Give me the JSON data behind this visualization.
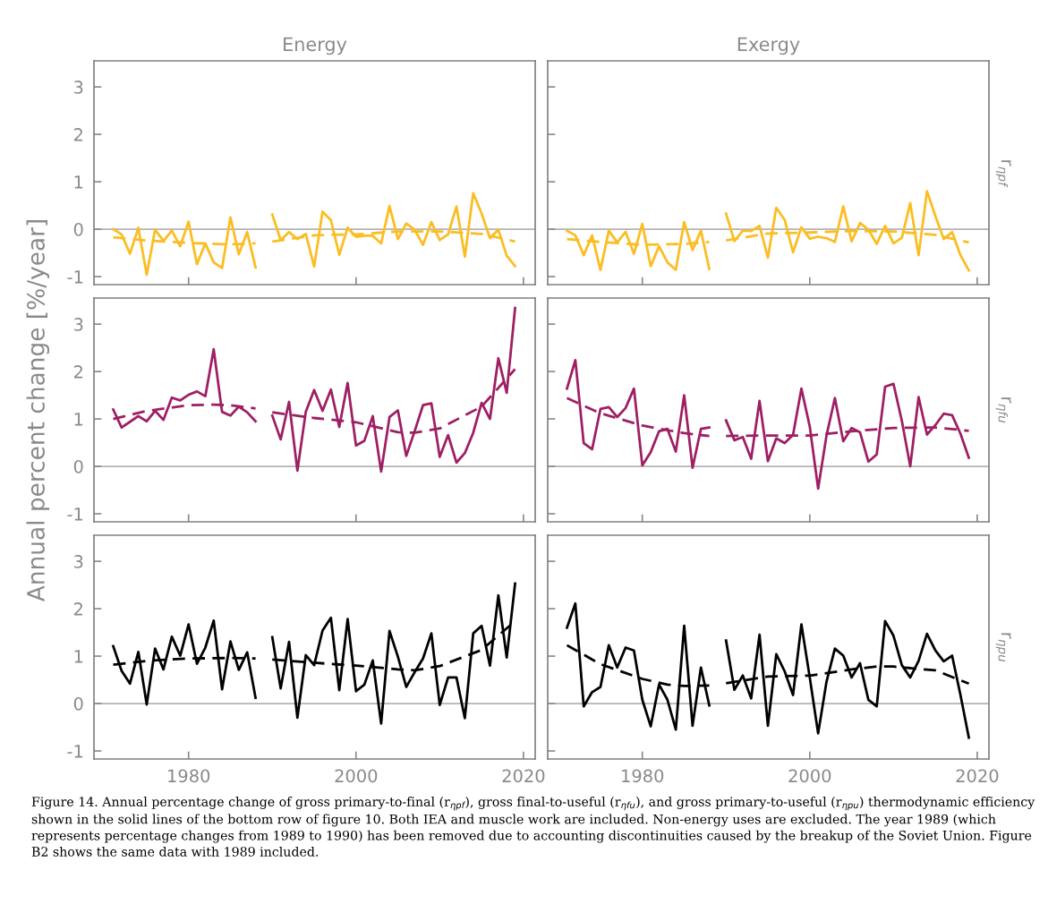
{
  "chart_data": [
    {
      "type": "line",
      "title": "Energy",
      "tick_labels": "y",
      "xlim": [
        1968.7,
        2021.4
      ],
      "ylim": [
        -1.17,
        3.55
      ],
      "xticks": [
        1980,
        2000,
        2020
      ],
      "yticks": [
        -1,
        0,
        1,
        2,
        3
      ],
      "x": [
        1971,
        1972,
        1973,
        1974,
        1975,
        1976,
        1977,
        1978,
        1979,
        1980,
        1981,
        1982,
        1983,
        1984,
        1985,
        1986,
        1987,
        1988,
        1989,
        1990,
        1991,
        1992,
        1993,
        1994,
        1995,
        1996,
        1997,
        1998,
        1999,
        2000,
        2001,
        2002,
        2003,
        2004,
        2005,
        2006,
        2007,
        2008,
        2009,
        2010,
        2011,
        2012,
        2013,
        2014,
        2015,
        2016,
        2017,
        2018,
        2019
      ],
      "ref_lines": [
        {
          "axis": "y",
          "value": 0,
          "color": "#b3b3b3"
        }
      ],
      "series": [
        {
          "color": "#fbbd22",
          "line_style": "solid",
          "values": [
            0.0,
            -0.11,
            -0.52,
            0.03,
            -0.96,
            -0.01,
            -0.25,
            -0.03,
            -0.36,
            0.16,
            -0.74,
            -0.3,
            -0.7,
            -0.82,
            0.25,
            -0.53,
            -0.06,
            -0.81,
            null,
            0.31,
            -0.23,
            -0.06,
            -0.21,
            -0.1,
            -0.79,
            0.37,
            0.19,
            -0.54,
            0.03,
            -0.16,
            -0.14,
            -0.14,
            -0.3,
            0.49,
            -0.21,
            0.12,
            -0.01,
            -0.33,
            0.15,
            -0.23,
            -0.11,
            0.48,
            -0.58,
            0.76,
            0.33,
            -0.19,
            -0.01,
            -0.56,
            -0.78
          ]
        },
        {
          "color": "#fbbd22",
          "line_style": "dashed",
          "x": [
            1971,
            1975,
            1980,
            1985,
            1988,
            1989,
            1990,
            1995,
            2000,
            2005,
            2010,
            2015,
            2019
          ],
          "values": [
            -0.17,
            -0.24,
            -0.29,
            -0.32,
            -0.3,
            null,
            -0.26,
            -0.13,
            -0.11,
            -0.05,
            -0.05,
            -0.1,
            -0.26
          ]
        }
      ]
    },
    {
      "type": "line",
      "title": "Exergy",
      "y2label": "r$_{ηpf}$",
      "tick_labels": false,
      "xlim": [
        1968.7,
        2021.4
      ],
      "ylim": [
        -1.17,
        3.55
      ],
      "xticks": [
        1980,
        2000,
        2020
      ],
      "yticks": [
        -1,
        0,
        1,
        2,
        3
      ],
      "x": [
        1971,
        1972,
        1973,
        1974,
        1975,
        1976,
        1977,
        1978,
        1979,
        1980,
        1981,
        1982,
        1983,
        1984,
        1985,
        1986,
        1987,
        1988,
        1989,
        1990,
        1991,
        1992,
        1993,
        1994,
        1995,
        1996,
        1997,
        1998,
        1999,
        2000,
        2001,
        2002,
        2003,
        2004,
        2005,
        2006,
        2007,
        2008,
        2009,
        2010,
        2011,
        2012,
        2013,
        2014,
        2015,
        2016,
        2017,
        2018,
        2019
      ],
      "ref_lines": [
        {
          "axis": "y",
          "value": 0,
          "color": "#b3b3b3"
        }
      ],
      "series": [
        {
          "color": "#fbbd22",
          "line_style": "solid",
          "values": [
            -0.03,
            -0.13,
            -0.55,
            -0.13,
            -0.86,
            -0.03,
            -0.28,
            -0.06,
            -0.52,
            0.11,
            -0.78,
            -0.36,
            -0.7,
            -0.86,
            0.15,
            -0.44,
            -0.03,
            -0.84,
            null,
            0.33,
            -0.25,
            -0.03,
            -0.04,
            0.07,
            -0.6,
            0.45,
            0.2,
            -0.49,
            0.04,
            -0.2,
            -0.16,
            -0.19,
            -0.27,
            0.48,
            -0.26,
            0.13,
            -0.01,
            -0.31,
            0.07,
            -0.3,
            -0.18,
            0.55,
            -0.55,
            0.8,
            0.28,
            -0.21,
            -0.06,
            -0.55,
            -0.87
          ]
        },
        {
          "color": "#fbbd22",
          "line_style": "dashed",
          "x": [
            1971,
            1975,
            1980,
            1985,
            1988,
            1989,
            1990,
            1995,
            2000,
            2005,
            2010,
            2015,
            2019
          ],
          "values": [
            -0.21,
            -0.27,
            -0.33,
            -0.31,
            -0.27,
            null,
            -0.24,
            -0.09,
            -0.07,
            -0.04,
            -0.05,
            -0.12,
            -0.28
          ]
        }
      ]
    },
    {
      "type": "line",
      "ylabel": "Annual percent change [%/year]",
      "tick_labels": "y",
      "xlim": [
        1968.7,
        2021.4
      ],
      "ylim": [
        -1.17,
        3.55
      ],
      "xticks": [
        1980,
        2000,
        2020
      ],
      "yticks": [
        -1,
        0,
        1,
        2,
        3
      ],
      "x": [
        1971,
        1972,
        1973,
        1974,
        1975,
        1976,
        1977,
        1978,
        1979,
        1980,
        1981,
        1982,
        1983,
        1984,
        1985,
        1986,
        1987,
        1988,
        1989,
        1990,
        1991,
        1992,
        1993,
        1994,
        1995,
        1996,
        1997,
        1998,
        1999,
        2000,
        2001,
        2002,
        2003,
        2004,
        2005,
        2006,
        2007,
        2008,
        2009,
        2010,
        2011,
        2012,
        2013,
        2014,
        2015,
        2016,
        2017,
        2018,
        2019
      ],
      "ref_lines": [
        {
          "axis": "y",
          "value": 0,
          "color": "#b3b3b3"
        }
      ],
      "series": [
        {
          "color": "#9e1f63",
          "line_style": "solid",
          "values": [
            1.2,
            0.82,
            0.94,
            1.06,
            0.95,
            1.17,
            0.98,
            1.45,
            1.39,
            1.51,
            1.58,
            1.48,
            2.47,
            1.15,
            1.07,
            1.26,
            1.14,
            0.95,
            null,
            1.07,
            0.57,
            1.36,
            -0.09,
            1.15,
            1.61,
            1.17,
            1.62,
            0.83,
            1.76,
            0.44,
            0.54,
            1.06,
            -0.11,
            1.04,
            1.18,
            0.22,
            0.74,
            1.29,
            1.33,
            0.2,
            0.66,
            0.08,
            0.28,
            0.71,
            1.34,
            1.0,
            2.28,
            1.55,
            3.34
          ]
        },
        {
          "color": "#9e1f63",
          "line_style": "dashed",
          "x": [
            1971,
            1975,
            1980,
            1983,
            1985,
            1988,
            1989,
            1990,
            1995,
            2000,
            2005,
            2007,
            2010,
            2015,
            2019
          ],
          "values": [
            1.0,
            1.17,
            1.29,
            1.3,
            1.29,
            1.22,
            null,
            1.14,
            1.02,
            0.93,
            0.72,
            0.71,
            0.8,
            1.26,
            2.05
          ]
        }
      ]
    },
    {
      "type": "line",
      "y2label": "r$_{ηfu}$",
      "tick_labels": false,
      "xlim": [
        1968.7,
        2021.4
      ],
      "ylim": [
        -1.17,
        3.55
      ],
      "xticks": [
        1980,
        2000,
        2020
      ],
      "yticks": [
        -1,
        0,
        1,
        2,
        3
      ],
      "x": [
        1971,
        1972,
        1973,
        1974,
        1975,
        1976,
        1977,
        1978,
        1979,
        1980,
        1981,
        1982,
        1983,
        1984,
        1985,
        1986,
        1987,
        1988,
        1989,
        1990,
        1991,
        1992,
        1993,
        1994,
        1995,
        1996,
        1997,
        1998,
        1999,
        2000,
        2001,
        2002,
        2003,
        2004,
        2005,
        2006,
        2007,
        2008,
        2009,
        2010,
        2011,
        2012,
        2013,
        2014,
        2015,
        2016,
        2017,
        2018,
        2019
      ],
      "ref_lines": [
        {
          "axis": "y",
          "value": 0,
          "color": "#b3b3b3"
        }
      ],
      "series": [
        {
          "color": "#9e1f63",
          "line_style": "solid",
          "values": [
            1.64,
            2.24,
            0.49,
            0.36,
            1.21,
            1.25,
            1.04,
            1.23,
            1.64,
            0.02,
            0.3,
            0.74,
            0.79,
            0.31,
            1.5,
            -0.03,
            0.79,
            0.82,
            null,
            0.97,
            0.55,
            0.62,
            0.16,
            1.38,
            0.11,
            0.59,
            0.49,
            0.66,
            1.64,
            0.84,
            -0.47,
            0.65,
            1.44,
            0.53,
            0.81,
            0.72,
            0.1,
            0.25,
            1.68,
            1.74,
            0.96,
            0.0,
            1.46,
            0.67,
            0.87,
            1.11,
            1.08,
            0.69,
            0.18
          ]
        },
        {
          "color": "#9e1f63",
          "line_style": "dashed",
          "x": [
            1971,
            1975,
            1980,
            1985,
            1988,
            1989,
            1990,
            1995,
            2000,
            2005,
            2010,
            2015,
            2019
          ],
          "values": [
            1.44,
            1.12,
            0.86,
            0.7,
            0.64,
            null,
            0.64,
            0.65,
            0.65,
            0.74,
            0.81,
            0.82,
            0.75
          ]
        }
      ]
    },
    {
      "type": "line",
      "xlim": [
        1968.7,
        2021.4
      ],
      "ylim": [
        -1.17,
        3.55
      ],
      "xticks": [
        1980,
        2000,
        2020
      ],
      "yticks": [
        -1,
        0,
        1,
        2,
        3
      ],
      "x": [
        1971,
        1972,
        1973,
        1974,
        1975,
        1976,
        1977,
        1978,
        1979,
        1980,
        1981,
        1982,
        1983,
        1984,
        1985,
        1986,
        1987,
        1988,
        1989,
        1990,
        1991,
        1992,
        1993,
        1994,
        1995,
        1996,
        1997,
        1998,
        1999,
        2000,
        2001,
        2002,
        2003,
        2004,
        2005,
        2006,
        2007,
        2008,
        2009,
        2010,
        2011,
        2012,
        2013,
        2014,
        2015,
        2016,
        2017,
        2018,
        2019
      ],
      "ref_lines": [
        {
          "axis": "y",
          "value": 0,
          "color": "#b3b3b3"
        }
      ],
      "series": [
        {
          "color": "#000000",
          "line_style": "solid",
          "values": [
            1.21,
            0.69,
            0.42,
            1.09,
            -0.02,
            1.16,
            0.72,
            1.41,
            1.01,
            1.67,
            0.84,
            1.18,
            1.75,
            0.3,
            1.31,
            0.71,
            1.08,
            0.12,
            null,
            1.4,
            0.32,
            1.3,
            -0.3,
            1.02,
            0.81,
            1.54,
            1.81,
            0.28,
            1.78,
            0.26,
            0.4,
            0.91,
            -0.42,
            1.53,
            0.99,
            0.35,
            0.66,
            0.95,
            1.48,
            -0.03,
            0.55,
            0.55,
            -0.31,
            1.48,
            1.64,
            0.8,
            2.28,
            0.97,
            2.53
          ]
        },
        {
          "color": "#000000",
          "line_style": "dashed",
          "x": [
            1971,
            1975,
            1980,
            1985,
            1988,
            1989,
            1990,
            1995,
            2000,
            2005,
            2007,
            2010,
            2015,
            2019
          ],
          "values": [
            0.82,
            0.9,
            0.95,
            0.96,
            0.95,
            null,
            0.93,
            0.86,
            0.8,
            0.72,
            0.7,
            0.79,
            1.13,
            1.74
          ]
        }
      ]
    },
    {
      "type": "line",
      "y2label": "r$_{ηpu}$",
      "tick_labels": "x",
      "xlim": [
        1968.7,
        2021.4
      ],
      "ylim": [
        -1.17,
        3.55
      ],
      "xticks": [
        1980,
        2000,
        2020
      ],
      "yticks": [
        -1,
        0,
        1,
        2,
        3
      ],
      "x": [
        1971,
        1972,
        1973,
        1974,
        1975,
        1976,
        1977,
        1978,
        1979,
        1980,
        1981,
        1982,
        1983,
        1984,
        1985,
        1986,
        1987,
        1988,
        1989,
        1990,
        1991,
        1992,
        1993,
        1994,
        1995,
        1996,
        1997,
        1998,
        1999,
        2000,
        2001,
        2002,
        2003,
        2004,
        2005,
        2006,
        2007,
        2008,
        2009,
        2010,
        2011,
        2012,
        2013,
        2014,
        2015,
        2016,
        2017,
        2018,
        2019
      ],
      "ref_lines": [
        {
          "axis": "y",
          "value": 0,
          "color": "#b3b3b3"
        }
      ],
      "annotations": [
        "Figure 14. Annual percentage change of gross primary-to-final (r$_{ηpf}$), gross final-to-useful (r$_{ηfu}$), and gross primary-to-useful (r$_{ηpu}$) thermodynamic efficiency shown in the solid lines of the bottom row of figure 10. Both IEA and muscle work are included. Non-energy uses are excluded. The year 1989 (which represents percentage changes from 1989 to 1990) has been removed due to accounting discontinuities caused by the breakup of the Soviet Union. Figure B2 shows the same data with 1989 included."
      ],
      "series": [
        {
          "color": "#000000",
          "line_style": "solid",
          "values": [
            1.6,
            2.11,
            -0.06,
            0.24,
            0.35,
            1.23,
            0.76,
            1.18,
            1.12,
            0.08,
            -0.48,
            0.4,
            0.08,
            -0.55,
            1.64,
            -0.47,
            0.76,
            -0.04,
            null,
            1.33,
            0.29,
            0.59,
            0.11,
            1.45,
            -0.47,
            1.04,
            0.68,
            0.18,
            1.67,
            0.55,
            -0.63,
            0.46,
            1.16,
            1.01,
            0.55,
            0.85,
            0.08,
            -0.06,
            1.74,
            1.43,
            0.81,
            0.55,
            0.9,
            1.47,
            1.12,
            0.89,
            1.01,
            0.18,
            -0.72
          ]
        },
        {
          "color": "#000000",
          "line_style": "dashed",
          "x": [
            1971,
            1975,
            1980,
            1983,
            1985,
            1988,
            1989,
            1990,
            1995,
            2000,
            2005,
            2008,
            2010,
            2015,
            2019
          ],
          "values": [
            1.23,
            0.83,
            0.52,
            0.4,
            0.37,
            0.38,
            null,
            0.43,
            0.57,
            0.59,
            0.72,
            0.78,
            0.78,
            0.7,
            0.42
          ]
        }
      ]
    }
  ]
}
